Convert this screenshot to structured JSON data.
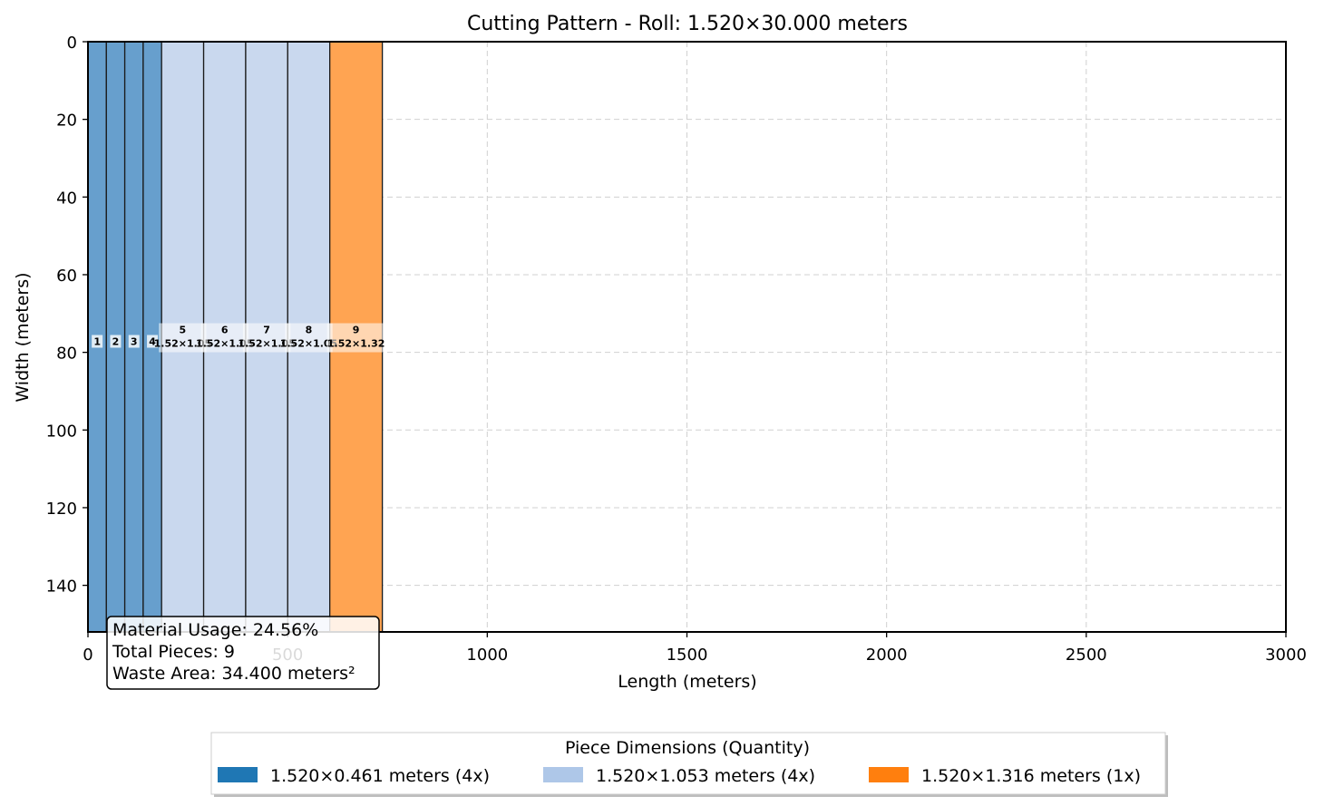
{
  "chart_data": {
    "type": "bar",
    "title": "Cutting Pattern - Roll: 1.520×30.000 meters",
    "xlabel": "Length (meters)",
    "ylabel": "Width (meters)",
    "xlim": [
      0,
      3000
    ],
    "ylim": [
      152,
      0
    ],
    "x_ticks": [
      0,
      500,
      1000,
      1500,
      2000,
      2500,
      3000
    ],
    "y_ticks": [
      0,
      20,
      40,
      60,
      80,
      100,
      120,
      140
    ],
    "grid": true,
    "legend_position": "bottom-center",
    "pieces": [
      {
        "id": "1",
        "x": 0,
        "length": 46.1,
        "width": 152,
        "group": 0,
        "label": "1"
      },
      {
        "id": "2",
        "x": 46.1,
        "length": 46.1,
        "width": 152,
        "group": 0,
        "label": "2"
      },
      {
        "id": "3",
        "x": 92.2,
        "length": 46.1,
        "width": 152,
        "group": 0,
        "label": "3"
      },
      {
        "id": "4",
        "x": 138.3,
        "length": 46.1,
        "width": 152,
        "group": 0,
        "label": "4"
      },
      {
        "id": "5",
        "x": 184.4,
        "length": 105.3,
        "width": 152,
        "group": 1,
        "label": "1.52×1.05"
      },
      {
        "id": "6",
        "x": 289.7,
        "length": 105.3,
        "width": 152,
        "group": 1,
        "label": "1.52×1.05"
      },
      {
        "id": "7",
        "x": 395.0,
        "length": 105.3,
        "width": 152,
        "group": 1,
        "label": "1.52×1.05"
      },
      {
        "id": "8",
        "x": 500.3,
        "length": 105.3,
        "width": 152,
        "group": 1,
        "label": "1.52×1.05"
      },
      {
        "id": "9",
        "x": 605.6,
        "length": 131.6,
        "width": 152,
        "group": 2,
        "label": "1.52×1.32"
      }
    ],
    "series": [
      {
        "name": "1.520×0.461 meters (4x)",
        "color": "#1f77b4"
      },
      {
        "name": "1.520×1.053 meters (4x)",
        "color": "#aec7e8"
      },
      {
        "name": "1.520×1.316 meters (1x)",
        "color": "#ff7f0e"
      }
    ],
    "legend_title": "Piece Dimensions (Quantity)",
    "stats": {
      "material_usage": "Material Usage: 24.56%",
      "total_pieces": "Total Pieces: 9",
      "waste_area": "Waste Area: 34.400 meters²"
    }
  }
}
